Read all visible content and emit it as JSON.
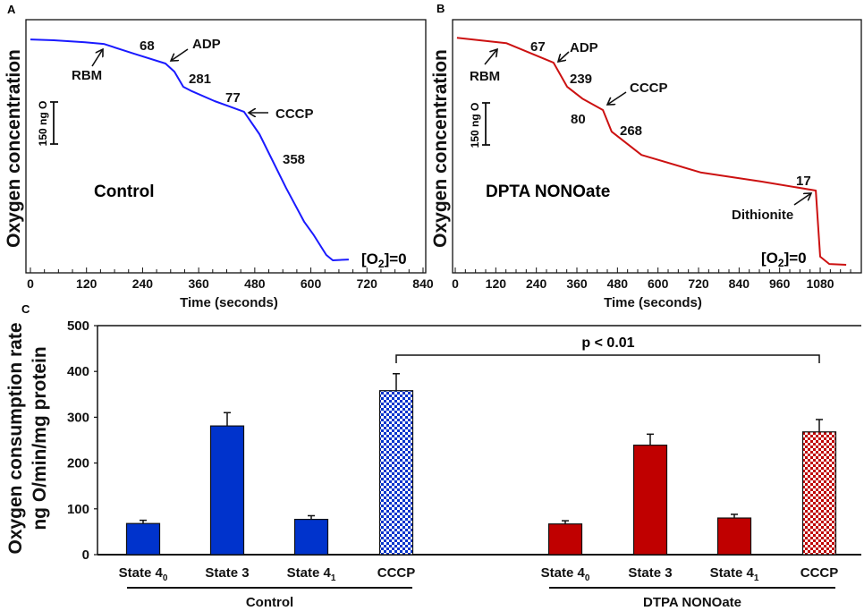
{
  "chart_data": [
    {
      "panel": "A",
      "type": "line",
      "title": "Control",
      "xlabel": "Time (seconds)",
      "ylabel": "Oxygen concentration",
      "xlim": [
        0,
        840
      ],
      "xticks": [
        0,
        120,
        240,
        360,
        480,
        600,
        720,
        840
      ],
      "color": "#1a1aff",
      "scale_bar": "150 ng O",
      "series": [
        {
          "name": "Control",
          "units": "ng O (relative to [O2]=0)",
          "x": [
            0,
            50,
            117,
            157,
            222,
            289,
            308,
            327,
            346,
            394,
            457,
            490,
            547,
            586,
            605,
            633,
            647,
            681
          ],
          "y": [
            788,
            785,
            778,
            772,
            737,
            702,
            673,
            619,
            603,
            568,
            530,
            450,
            258,
            137,
            93,
            19,
            0,
            3
          ]
        }
      ],
      "annotations": {
        "rate1": "68",
        "adp": "ADP",
        "rbm": "RBM",
        "rate2": "281",
        "rate3": "77",
        "cccp": "CCCP",
        "rate4": "358",
        "zero_pre": "[O",
        "zero_sub": "2",
        "zero_post": "]=0"
      }
    },
    {
      "panel": "B",
      "type": "line",
      "title": "DPTA NONOate",
      "xlabel": "Time (seconds)",
      "ylabel": "Oxygen concentration",
      "xlim": [
        0,
        1170
      ],
      "xticks": [
        0,
        120,
        240,
        360,
        480,
        600,
        720,
        840,
        960,
        1080
      ],
      "color": "#cc1111",
      "scale_bar": "150 ng O",
      "series": [
        {
          "name": "DPTA NONOate",
          "units": "ng O (relative to [O2]=0)",
          "x": [
            5,
            151,
            291,
            331,
            376,
            437,
            463,
            551,
            728,
            905,
            1067,
            1080,
            1107,
            1157
          ],
          "y": [
            810,
            791,
            721,
            635,
            593,
            552,
            475,
            392,
            329,
            297,
            265,
            29,
            3,
            0
          ]
        }
      ],
      "annotations": {
        "rate1": "67",
        "adp": "ADP",
        "rbm": "RBM",
        "rate2": "239",
        "cccp": "CCCP",
        "rate3": "80",
        "rate4": "268",
        "rate5": "17",
        "dithionite": "Dithionite",
        "zero_pre": "[O",
        "zero_sub": "2",
        "zero_post": "]=0"
      }
    },
    {
      "panel": "C",
      "type": "bar",
      "ylabel_line1": "Oxygen consumption rate",
      "ylabel_line2": "ng O/min/mg protein",
      "ylim": [
        0,
        500
      ],
      "yticks": [
        "0",
        "100",
        "200",
        "300",
        "400",
        "500"
      ],
      "categories": [
        {
          "label": "State 4",
          "sub": "0"
        },
        {
          "label": "State 3",
          "sub": ""
        },
        {
          "label": "State 4",
          "sub": "1"
        },
        {
          "label": "CCCP",
          "sub": ""
        }
      ],
      "series": [
        {
          "name": "Control",
          "color": "#0033cc",
          "values": [
            68,
            281,
            77,
            358
          ],
          "errors": [
            7,
            29,
            8,
            37
          ]
        },
        {
          "name": "DTPA NONOate",
          "color": "#c00000",
          "values": [
            67,
            239,
            80,
            268
          ],
          "errors": [
            7,
            24,
            8,
            27
          ]
        }
      ],
      "significance": {
        "label": "p < 0.01",
        "between": "CCCP Control vs CCCP DTPA NONOate"
      }
    }
  ],
  "panels": {
    "a": "A",
    "b": "B",
    "c": "C"
  }
}
